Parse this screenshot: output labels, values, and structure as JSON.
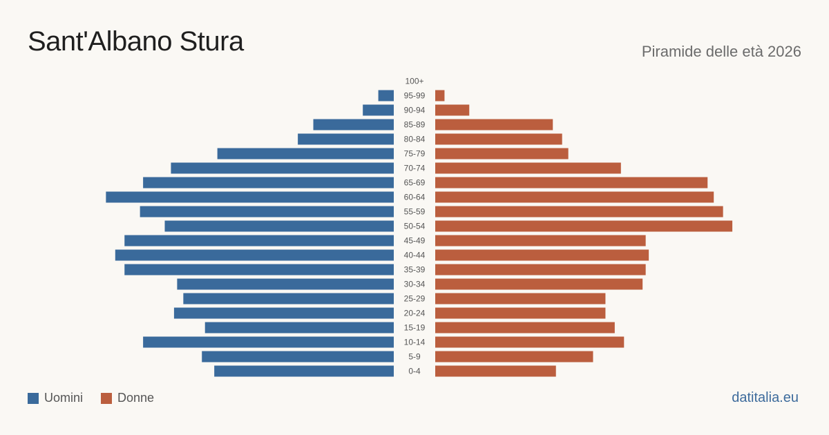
{
  "header": {
    "title": "Sant'Albano Stura",
    "subtitle": "Piramide delle età 2026"
  },
  "legend": {
    "male_label": "Uomini",
    "female_label": "Donne"
  },
  "source": "datitalia.eu",
  "colors": {
    "male": "#3a6a9b",
    "female": "#bb5e3e",
    "background": "#faf8f4"
  },
  "chart_data": {
    "type": "bar",
    "orientation": "horizontal-pyramid",
    "categories": [
      "100+",
      "95-99",
      "90-94",
      "85-89",
      "80-84",
      "75-79",
      "70-74",
      "65-69",
      "60-64",
      "55-59",
      "50-54",
      "45-49",
      "40-44",
      "35-39",
      "30-34",
      "25-29",
      "20-24",
      "15-19",
      "10-14",
      "5-9",
      "0-4"
    ],
    "series": [
      {
        "name": "Uomini",
        "values": [
          0,
          5,
          10,
          26,
          31,
          57,
          72,
          81,
          93,
          82,
          74,
          87,
          90,
          87,
          70,
          68,
          71,
          61,
          81,
          62,
          58
        ]
      },
      {
        "name": "Donne",
        "values": [
          0,
          3,
          11,
          38,
          41,
          43,
          60,
          88,
          90,
          93,
          96,
          68,
          69,
          68,
          67,
          55,
          55,
          58,
          61,
          51,
          39
        ]
      }
    ],
    "legend_position": "bottom-left",
    "grid": false
  }
}
